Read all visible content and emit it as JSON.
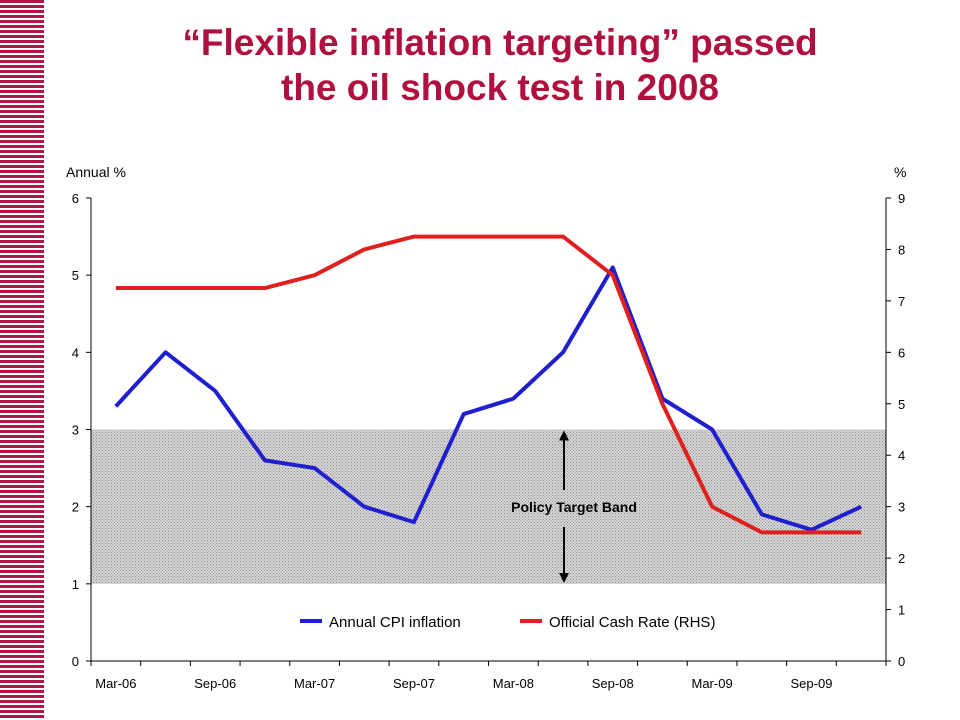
{
  "title": {
    "line1": "“Flexible inflation targeting” passed",
    "line2": "the oil shock test in 2008"
  },
  "chart_data": {
    "type": "line",
    "x": [
      "Mar-06",
      "Jun-06",
      "Sep-06",
      "Dec-06",
      "Mar-07",
      "Jun-07",
      "Sep-07",
      "Dec-07",
      "Mar-08",
      "Jun-08",
      "Sep-08",
      "Dec-08",
      "Mar-09",
      "Jun-09",
      "Sep-09",
      "Dec-09"
    ],
    "x_tick_labels": [
      "Mar-06",
      "Sep-06",
      "Mar-07",
      "Sep-07",
      "Mar-08",
      "Sep-08",
      "Mar-09",
      "Sep-09"
    ],
    "series": [
      {
        "name": "Annual CPI inflation",
        "axis": "left",
        "color": "#1f1fd0",
        "values": [
          3.3,
          4.0,
          3.5,
          2.6,
          2.5,
          2.0,
          1.8,
          3.2,
          3.4,
          4.0,
          5.1,
          3.4,
          3.0,
          1.9,
          1.7,
          2.0
        ]
      },
      {
        "name": "Official Cash Rate (RHS)",
        "axis": "right",
        "color": "#e0201e",
        "values": [
          7.25,
          7.25,
          7.25,
          7.25,
          7.5,
          8.0,
          8.25,
          8.25,
          8.25,
          8.25,
          7.5,
          5.0,
          3.0,
          2.5,
          2.5,
          2.5
        ]
      }
    ],
    "ylabel_left": "Annual %",
    "ylabel_right": "%",
    "ylim_left": [
      0,
      6
    ],
    "ylim_right": [
      0,
      9
    ],
    "yticks_left": [
      "0",
      "1",
      "2",
      "3",
      "4",
      "5",
      "6"
    ],
    "yticks_right": [
      "0",
      "1",
      "2",
      "3",
      "4",
      "5",
      "6",
      "7",
      "8",
      "9"
    ],
    "band": {
      "label": "Policy Target Band",
      "from": 1,
      "to": 3,
      "axis": "left"
    },
    "legend": "bottom"
  }
}
